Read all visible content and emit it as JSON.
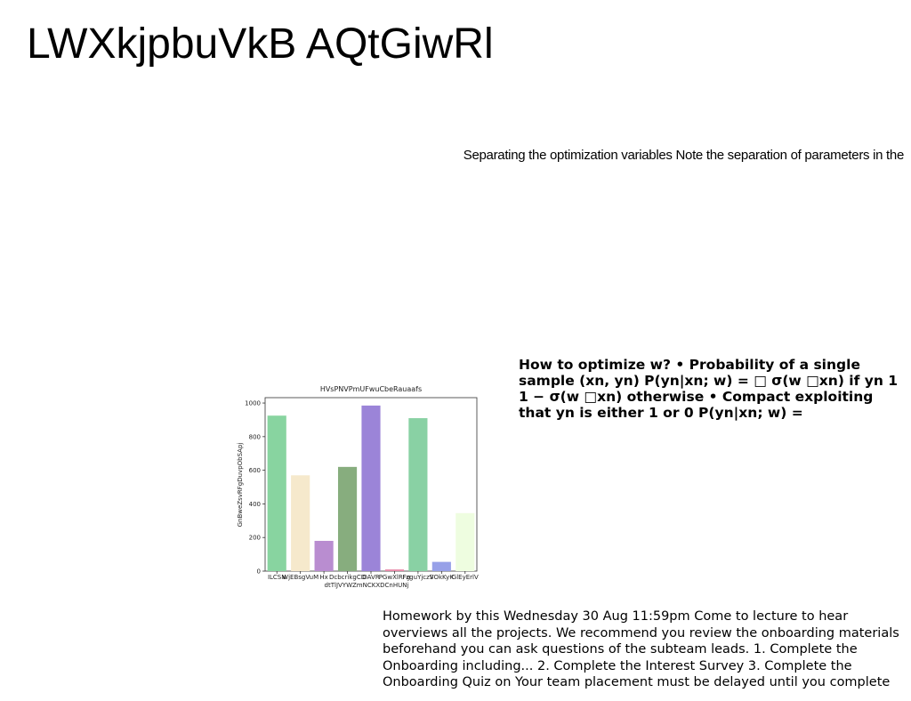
{
  "header": {
    "title": "LWXkjpbuVkB AQtGiwRl"
  },
  "blocks": [
    "Separating the optimization variables Note the separation of parameters in the",
    "How to optimize w? • Probability of a single sample (xn, yn) P(yn|xn; w) = □ σ(w □xn) if yn 1 1 − σ(w □xn) otherwise • Compact exploiting that yn is either 1 or 0 P(yn|xn; w) =",
    "Homework by this Wednesday 30 Aug 11:59pm Come to lecture to hear overviews all the projects. We recommend you review the onboarding materials beforehand you can ask questions of the subteam leads. 1. Complete the Onboarding including... 2. Complete the Interest Survey 3. Complete the Onboarding Quiz on Your team placement must be delayed until you complete these tasks! You will"
  ],
  "chart_data": {
    "type": "bar",
    "title": "HVsPNVPmUFwuCbeRauaafs",
    "y_label": "GnBweZsvRFgDuvpObSApj",
    "categories": [
      "ILCSN",
      "WjEBsgVuM",
      "Hx",
      "DcbcrikgCD dtTlJVYWZmNCKXDCnHUNj",
      "OAVR",
      "PGwXlRFg",
      "FzguYjczS",
      "VOkKyK",
      "GlEyErlV"
    ],
    "values": [
      925,
      570,
      180,
      620,
      985,
      10,
      910,
      55,
      345
    ],
    "colors": [
      "#88d4a0",
      "#f6e9cc",
      "#b98dd0",
      "#87ad7e",
      "#9b84d8",
      "#e88aa8",
      "#89d1a4",
      "#97a0e8",
      "#eefde0"
    ],
    "ylim": [
      0,
      1032
    ],
    "yticks": [
      0,
      200,
      400,
      600,
      800,
      1000
    ]
  }
}
